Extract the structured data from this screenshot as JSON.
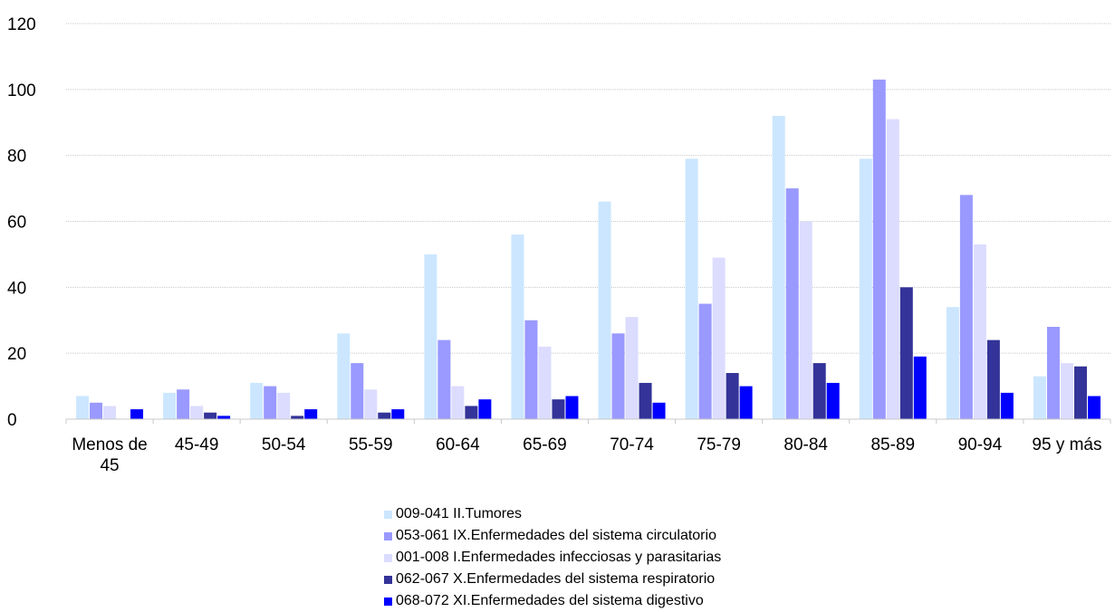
{
  "chart_data": {
    "type": "bar",
    "title": "",
    "xlabel": "",
    "ylabel": "",
    "ylim": [
      0,
      120
    ],
    "yticks": [
      0,
      20,
      40,
      60,
      80,
      100,
      120
    ],
    "grid": "horizontal",
    "legend_position": "bottom",
    "categories": [
      "Menos de 45",
      "45-49",
      "50-54",
      "55-59",
      "60-64",
      "65-69",
      "70-74",
      "75-79",
      "80-84",
      "85-89",
      "90-94",
      "95 y más"
    ],
    "category_display": [
      [
        "Menos de",
        "45"
      ],
      [
        "45-49"
      ],
      [
        "50-54"
      ],
      [
        "55-59"
      ],
      [
        "60-64"
      ],
      [
        "65-69"
      ],
      [
        "70-74"
      ],
      [
        "75-79"
      ],
      [
        "80-84"
      ],
      [
        "85-89"
      ],
      [
        "90-94"
      ],
      [
        "95 y más"
      ]
    ],
    "series": [
      {
        "name": "009-041 II.Tumores",
        "color": "#cce6ff",
        "values": [
          7,
          8,
          11,
          26,
          50,
          56,
          66,
          79,
          92,
          79,
          34,
          13
        ]
      },
      {
        "name": "053-061 IX.Enfermedades del sistema circulatorio",
        "color": "#9999ff",
        "values": [
          5,
          9,
          10,
          17,
          24,
          30,
          26,
          35,
          70,
          103,
          68,
          28
        ]
      },
      {
        "name": "001-008 I.Enfermedades infecciosas y parasitarias",
        "color": "#dcdcff",
        "values": [
          4,
          4,
          8,
          9,
          10,
          22,
          31,
          49,
          60,
          91,
          53,
          17
        ]
      },
      {
        "name": "062-067 X.Enfermedades del sistema respiratorio",
        "color": "#333399",
        "values": [
          0,
          2,
          1,
          2,
          4,
          6,
          11,
          14,
          17,
          40,
          24,
          16
        ]
      },
      {
        "name": "068-072 XI.Enfermedades del sistema digestivo",
        "color": "#0000ff",
        "values": [
          3,
          1,
          3,
          3,
          6,
          7,
          5,
          10,
          11,
          19,
          8,
          7
        ]
      }
    ]
  }
}
